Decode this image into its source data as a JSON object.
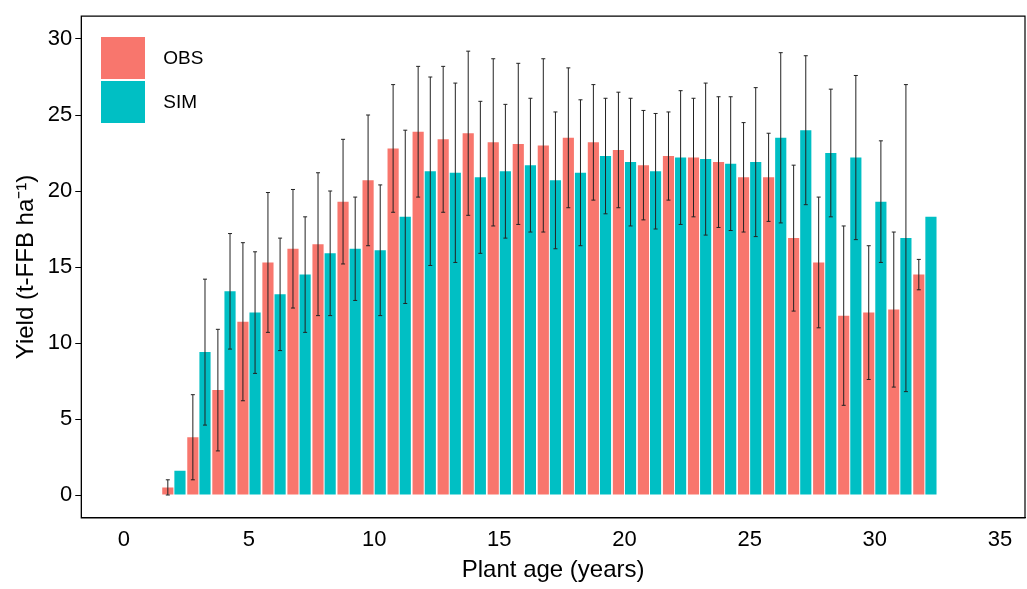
{
  "chart_data": {
    "type": "bar",
    "xlabel": "Plant age (years)",
    "ylabel": "Yield (t-FFB ha⁻¹)",
    "x": [
      2,
      3,
      4,
      5,
      6,
      7,
      8,
      9,
      10,
      11,
      12,
      13,
      14,
      15,
      16,
      17,
      18,
      19,
      20,
      21,
      22,
      23,
      24,
      25,
      26,
      27,
      28,
      29,
      30,
      31,
      32
    ],
    "series": [
      {
        "name": "OBS",
        "color": "#f8766d",
        "values": [
          0.5,
          3.8,
          6.9,
          11.4,
          15.3,
          16.2,
          16.5,
          19.3,
          20.7,
          22.8,
          23.9,
          23.4,
          23.8,
          23.2,
          23.1,
          23.0,
          23.5,
          23.2,
          22.7,
          21.7,
          22.3,
          22.2,
          21.9,
          20.9,
          20.9,
          16.9,
          15.3,
          11.8,
          12.0,
          12.2,
          14.5
        ],
        "errors": [
          0.5,
          2.8,
          4.0,
          5.2,
          4.6,
          3.9,
          4.7,
          4.1,
          4.3,
          4.2,
          4.3,
          4.8,
          5.4,
          5.5,
          5.3,
          5.7,
          4.6,
          3.8,
          3.8,
          3.6,
          2.9,
          3.9,
          4.3,
          3.6,
          2.9,
          4.8,
          4.3,
          5.9,
          4.4,
          5.1,
          1.0
        ]
      },
      {
        "name": "SIM",
        "color": "#00bfc4",
        "values": [
          1.6,
          9.4,
          13.4,
          12.0,
          13.2,
          14.5,
          15.9,
          16.2,
          16.1,
          18.3,
          21.3,
          21.2,
          20.9,
          21.3,
          21.7,
          20.7,
          21.2,
          22.3,
          21.9,
          21.3,
          22.2,
          22.1,
          21.8,
          21.9,
          23.5,
          24.0,
          22.5,
          22.2,
          19.3,
          16.9,
          18.3
        ],
        "errors": [
          null,
          4.8,
          3.8,
          4.0,
          3.7,
          3.8,
          4.1,
          3.4,
          4.3,
          5.7,
          6.2,
          5.9,
          5.0,
          4.4,
          4.4,
          4.5,
          4.8,
          3.8,
          4.2,
          3.8,
          4.4,
          5.0,
          4.4,
          4.9,
          5.6,
          4.9,
          4.2,
          5.4,
          4.0,
          10.1,
          null
        ]
      }
    ],
    "xlim": [
      -1.7,
      36
    ],
    "xticks": [
      0,
      5,
      10,
      15,
      20,
      25,
      30,
      35
    ],
    "ylim": [
      -1.5,
      31.5
    ],
    "yticks": [
      0,
      5,
      10,
      15,
      20,
      25,
      30
    ],
    "grid": false,
    "legend": "top left"
  }
}
